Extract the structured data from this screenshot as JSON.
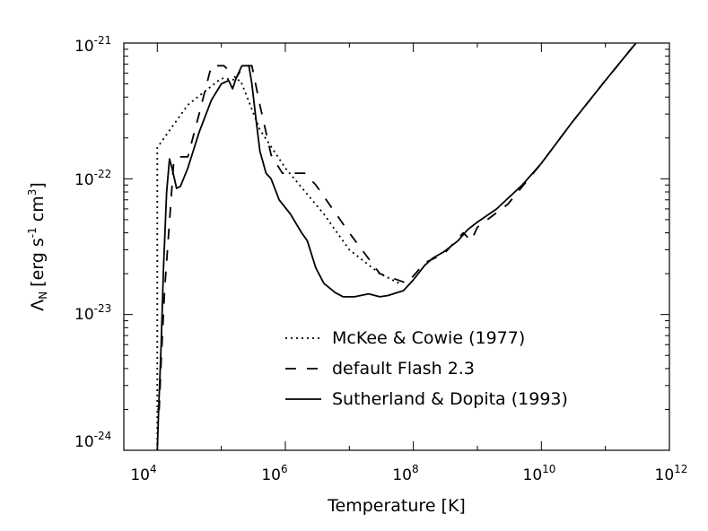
{
  "chart_data": {
    "type": "line",
    "title": "",
    "xlabel": "Temperature [K]",
    "ylabel_parts": {
      "symbol": "Λ",
      "symbol_sub": "N",
      "bracket_open": "[erg s",
      "exp1": "-1",
      "mid": " cm",
      "exp2": "3",
      "bracket_close": "]"
    },
    "xscale": "log",
    "yscale": "log",
    "xlim": [
      3000,
      1000000000000
    ],
    "ylim": [
      1e-24,
      1e-21
    ],
    "x_ticks": [
      {
        "base": "10",
        "exp": "4",
        "value": 10000
      },
      {
        "base": "10",
        "exp": "6",
        "value": 1000000
      },
      {
        "base": "10",
        "exp": "8",
        "value": 100000000
      },
      {
        "base": "10",
        "exp": "10",
        "value": 10000000000
      },
      {
        "base": "10",
        "exp": "12",
        "value": 1000000000000
      }
    ],
    "y_ticks": [
      {
        "base": "10",
        "exp": "-24",
        "value": 1e-24
      },
      {
        "base": "10",
        "exp": "-23",
        "value": 1e-23
      },
      {
        "base": "10",
        "exp": "-22",
        "value": 1e-22
      },
      {
        "base": "10",
        "exp": "-21",
        "value": 1e-21
      }
    ],
    "legend_position": "center-right",
    "series": [
      {
        "name": "McKee & Cowie (1977)",
        "style": "dotted",
        "points": [
          [
            10000,
            1e-24
          ],
          [
            10000,
            1.7e-22
          ],
          [
            30000,
            3.5e-22
          ],
          [
            100000,
            5.5e-22
          ],
          [
            200000,
            5.3e-22
          ],
          [
            400000,
            2.3e-22
          ],
          [
            1000000,
            1.2e-22
          ],
          [
            4000000,
            5.5e-23
          ],
          [
            10000000,
            3e-23
          ],
          [
            30000000,
            2e-23
          ],
          [
            60000000,
            1.7e-23
          ]
        ]
      },
      {
        "name": "default Flash 2.3",
        "style": "dashed",
        "points": [
          [
            10000,
            2e-24
          ],
          [
            10700,
            2e-24
          ],
          [
            11500,
            4.5e-24
          ],
          [
            13000,
            1.5e-23
          ],
          [
            16000,
            6e-23
          ],
          [
            18000,
            1.3e-22
          ],
          [
            21000,
            1.45e-22
          ],
          [
            30000,
            1.45e-22
          ],
          [
            45000,
            3e-22
          ],
          [
            70000,
            6.8e-22
          ],
          [
            110000,
            6.8e-22
          ],
          [
            170000,
            5.5e-22
          ],
          [
            220000,
            6.8e-22
          ],
          [
            300000,
            6.8e-22
          ],
          [
            400000,
            3.5e-22
          ],
          [
            600000,
            1.5e-22
          ],
          [
            900000,
            1.1e-22
          ],
          [
            1300000,
            1.1e-22
          ],
          [
            2000000,
            1.1e-22
          ],
          [
            3000000,
            9e-23
          ],
          [
            10000000,
            4e-23
          ],
          [
            30000000,
            2e-23
          ],
          [
            80000000,
            1.7e-23
          ],
          [
            150000000,
            2.4e-23
          ],
          [
            300000000,
            2.8e-23
          ],
          [
            600000000,
            4e-23
          ],
          [
            800000000,
            3.5e-23
          ],
          [
            1000000000,
            4.4e-23
          ],
          [
            3000000000,
            6.5e-23
          ],
          [
            10000000000,
            1.3e-22
          ],
          [
            30000000000,
            2.6e-22
          ],
          [
            100000000000,
            5.3e-22
          ],
          [
            300000000000,
            1e-21
          ]
        ]
      },
      {
        "name": "Sutherland & Dopita (1993)",
        "style": "solid",
        "points": [
          [
            10000,
            1e-24
          ],
          [
            10500,
            2e-24
          ],
          [
            11500,
            6e-24
          ],
          [
            12500,
            2.2e-23
          ],
          [
            14000,
            8e-23
          ],
          [
            15500,
            1.4e-22
          ],
          [
            17000,
            1.2e-22
          ],
          [
            20000,
            8.5e-23
          ],
          [
            23000,
            8.8e-23
          ],
          [
            30000,
            1.2e-22
          ],
          [
            45000,
            2.2e-22
          ],
          [
            70000,
            3.8e-22
          ],
          [
            100000,
            5e-22
          ],
          [
            130000,
            5.3e-22
          ],
          [
            150000,
            4.6e-22
          ],
          [
            170000,
            5.5e-22
          ],
          [
            210000,
            6.8e-22
          ],
          [
            270000,
            6.8e-22
          ],
          [
            300000,
            5e-22
          ],
          [
            340000,
            3e-22
          ],
          [
            400000,
            1.6e-22
          ],
          [
            500000,
            1.1e-22
          ],
          [
            600000,
            1e-22
          ],
          [
            800000,
            7e-23
          ],
          [
            1200000,
            5.5e-23
          ],
          [
            1800000,
            4e-23
          ],
          [
            2200000,
            3.5e-23
          ],
          [
            3000000,
            2.2e-23
          ],
          [
            4000000,
            1.7e-23
          ],
          [
            6000000,
            1.45e-23
          ],
          [
            8000000,
            1.35e-23
          ],
          [
            12000000,
            1.35e-23
          ],
          [
            20000000,
            1.42e-23
          ],
          [
            30000000,
            1.35e-23
          ],
          [
            40000000,
            1.38e-23
          ],
          [
            70000000,
            1.5e-23
          ],
          [
            100000000,
            1.8e-23
          ],
          [
            150000000,
            2.3e-23
          ],
          [
            200000000,
            2.6e-23
          ],
          [
            300000000,
            2.9e-23
          ],
          [
            500000000,
            3.5e-23
          ],
          [
            700000000,
            4.2e-23
          ],
          [
            1000000000,
            4.8e-23
          ],
          [
            2000000000,
            6e-23
          ],
          [
            5000000000,
            9e-23
          ],
          [
            10000000000,
            1.3e-22
          ],
          [
            30000000000,
            2.6e-22
          ],
          [
            100000000000,
            5.3e-22
          ],
          [
            300000000000,
            1e-21
          ]
        ]
      }
    ]
  }
}
